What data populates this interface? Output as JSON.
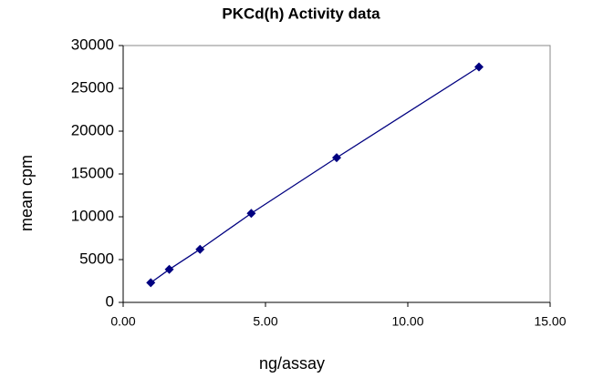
{
  "chart_data": {
    "type": "scatter",
    "title": "PKCd(h) Activity data",
    "x_label": "ng/assay",
    "y_label": "mean cpm",
    "x": [
      0.97,
      1.62,
      2.7,
      4.5,
      7.5,
      12.5
    ],
    "values": [
      2300,
      3850,
      6200,
      10400,
      16900,
      27500
    ],
    "color": "#000080",
    "connect": true,
    "xlim": [
      0,
      15
    ],
    "xticks": [
      {
        "value": 0,
        "label": "0.00"
      },
      {
        "value": 5,
        "label": "5.00"
      },
      {
        "value": 10,
        "label": "10.00"
      },
      {
        "value": 15,
        "label": "15.00"
      }
    ],
    "ylim": [
      0,
      30000
    ],
    "yticks": [
      0,
      5000,
      10000,
      15000,
      20000,
      25000,
      30000
    ]
  }
}
